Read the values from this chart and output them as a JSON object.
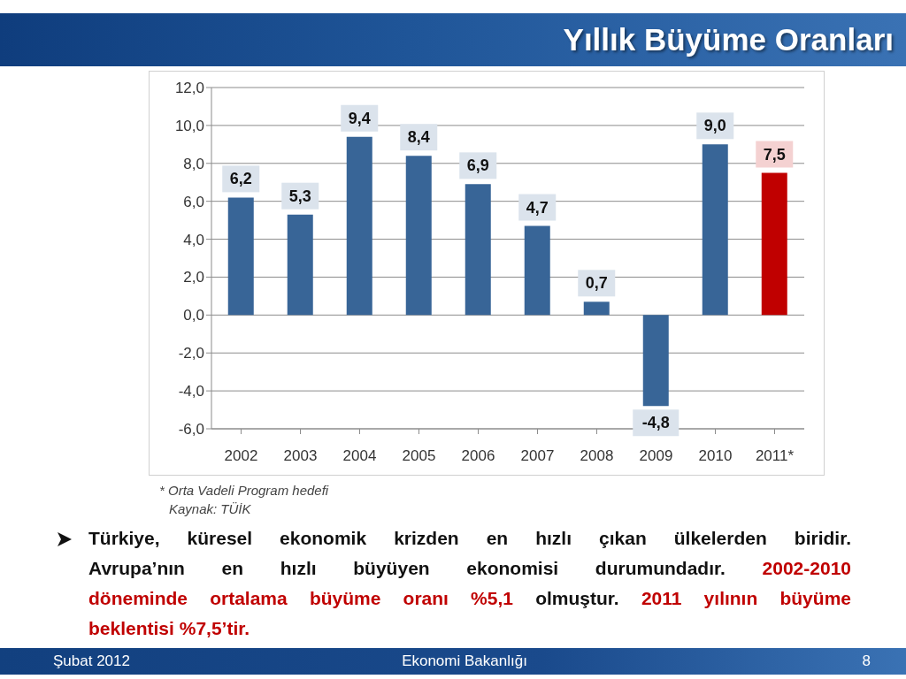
{
  "chart_data": {
    "type": "bar",
    "title": "Yıllık Büyüme Oranları",
    "categories": [
      "2002",
      "2003",
      "2004",
      "2005",
      "2006",
      "2007",
      "2008",
      "2009",
      "2010",
      "2011*"
    ],
    "values": [
      6.2,
      5.3,
      9.4,
      8.4,
      6.9,
      4.7,
      0.7,
      -4.8,
      9.0,
      7.5
    ],
    "colors": [
      "#386597",
      "#386597",
      "#386597",
      "#386597",
      "#386597",
      "#386597",
      "#386597",
      "#386597",
      "#386597",
      "#c00000"
    ],
    "value_labels": [
      "6,2",
      "5,3",
      "9,4",
      "8,4",
      "6,9",
      "4,7",
      "0,7",
      "-4,8",
      "9,0",
      "7,5"
    ],
    "ylim": [
      -6,
      12
    ],
    "yticks": [
      {
        "value": -6,
        "label": "-6,0"
      },
      {
        "value": -4,
        "label": "-4,0"
      },
      {
        "value": -2,
        "label": "-2,0"
      },
      {
        "value": 0,
        "label": "0,0"
      },
      {
        "value": 2,
        "label": "2,0"
      },
      {
        "value": 4,
        "label": "4,0"
      },
      {
        "value": 6,
        "label": "6,0"
      },
      {
        "value": 8,
        "label": "8,0"
      },
      {
        "value": 10,
        "label": "10,0"
      },
      {
        "value": 12,
        "label": "12,0"
      }
    ],
    "grid": "y",
    "annotations": [
      "* Orta Vadeli Program hedefi",
      "Kaynak: TÜİK",
      "Türkiye, küresel ekonomik krizden en hızlı çıkan ülkelerden biridir.",
      "Avrupa’nın en hızlı büyüyen ekonomisi durumundadır.",
      "2002-2010",
      "döneminde ortalama büyüme oranı %5,1",
      "olmuştur.",
      "2011 yılının büyüme",
      "beklentisi %7,5’tir.",
      "Şubat 2012",
      "Ekonomi Bakanlığı",
      "8"
    ]
  }
}
